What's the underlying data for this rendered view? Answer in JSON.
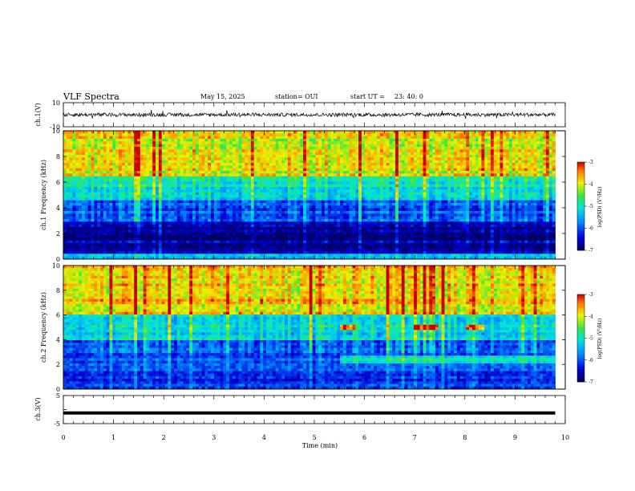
{
  "header": {
    "title": "VLF Spectra",
    "date": "May 15, 2025",
    "station": "station= OUI",
    "start_label": "start UT =",
    "start_time": "23: 40: 0"
  },
  "colorbar": {
    "label": "log(PSD) (V²/Hz)",
    "ticks": [
      "-3",
      "-4",
      "-5",
      "-6",
      "-7"
    ]
  },
  "chart_data": [
    {
      "type": "line",
      "id": "ch1_waveform",
      "ylabel": "ch.1(V)",
      "ylim": [
        -10,
        10
      ],
      "yticks": [
        "10",
        "-10"
      ],
      "description_values": {
        "baseline": 0,
        "noise_amplitude_approx": 1.5,
        "spike_max_approx": 4
      }
    },
    {
      "type": "heatmap",
      "id": "ch1_spectrogram",
      "ylabel": "ch.1 Frequency (kHz)",
      "ylim": [
        0,
        10
      ],
      "yticks": [
        "0",
        "2",
        "4",
        "6",
        "8",
        "10"
      ],
      "zlim": [
        -7,
        -3
      ],
      "xlim": [
        0,
        9.8
      ],
      "bands": [
        {
          "f_from": 0,
          "f_to": 0.5,
          "level": -5.5
        },
        {
          "f_from": 0.5,
          "f_to": 3.0,
          "level": -6.7
        },
        {
          "f_from": 3.0,
          "f_to": 4.5,
          "level": -6.0
        },
        {
          "f_from": 4.5,
          "f_to": 6.5,
          "level": -5.0
        },
        {
          "f_from": 6.5,
          "f_to": 10,
          "level": -4.0
        }
      ]
    },
    {
      "type": "heatmap",
      "id": "ch2_spectrogram",
      "ylabel": "ch.2 Frequency (kHz)",
      "ylim": [
        0,
        10
      ],
      "yticks": [
        "0",
        "2",
        "4",
        "6",
        "8",
        "10"
      ],
      "zlim": [
        -7,
        -3
      ],
      "xlim": [
        0,
        9.8
      ],
      "bands": [
        {
          "f_from": 0,
          "f_to": 1.5,
          "level": -6.2
        },
        {
          "f_from": 1.5,
          "f_to": 4.0,
          "level": -6.0
        },
        {
          "f_from": 4.0,
          "f_to": 6.0,
          "level": -5.2
        },
        {
          "f_from": 6.0,
          "f_to": 10,
          "level": -3.8
        }
      ],
      "emission_lines": [
        {
          "t_from": 5.5,
          "t_to": 9.8,
          "f": 2.4,
          "level": -5.0
        },
        {
          "t_from": 5.5,
          "t_to": 5.8,
          "f": 5.0,
          "level": -3.5
        },
        {
          "t_from": 7.0,
          "t_to": 7.5,
          "f": 5.0,
          "level": -3.3
        },
        {
          "t_from": 8.0,
          "t_to": 8.4,
          "f": 5.0,
          "level": -3.6
        }
      ]
    },
    {
      "type": "line",
      "id": "ch3_waveform",
      "ylabel": "ch.3(V)",
      "ylim": [
        -5,
        5
      ],
      "yticks": [
        "5",
        "0",
        "-5"
      ],
      "x": [
        0,
        9.8
      ],
      "y": [
        -1.2,
        -1.2
      ]
    }
  ],
  "xaxis": {
    "label": "Time (min)",
    "ticks": [
      "0",
      "1",
      "2",
      "3",
      "4",
      "5",
      "6",
      "7",
      "8",
      "9",
      "10"
    ],
    "xlim": [
      0,
      10
    ]
  }
}
